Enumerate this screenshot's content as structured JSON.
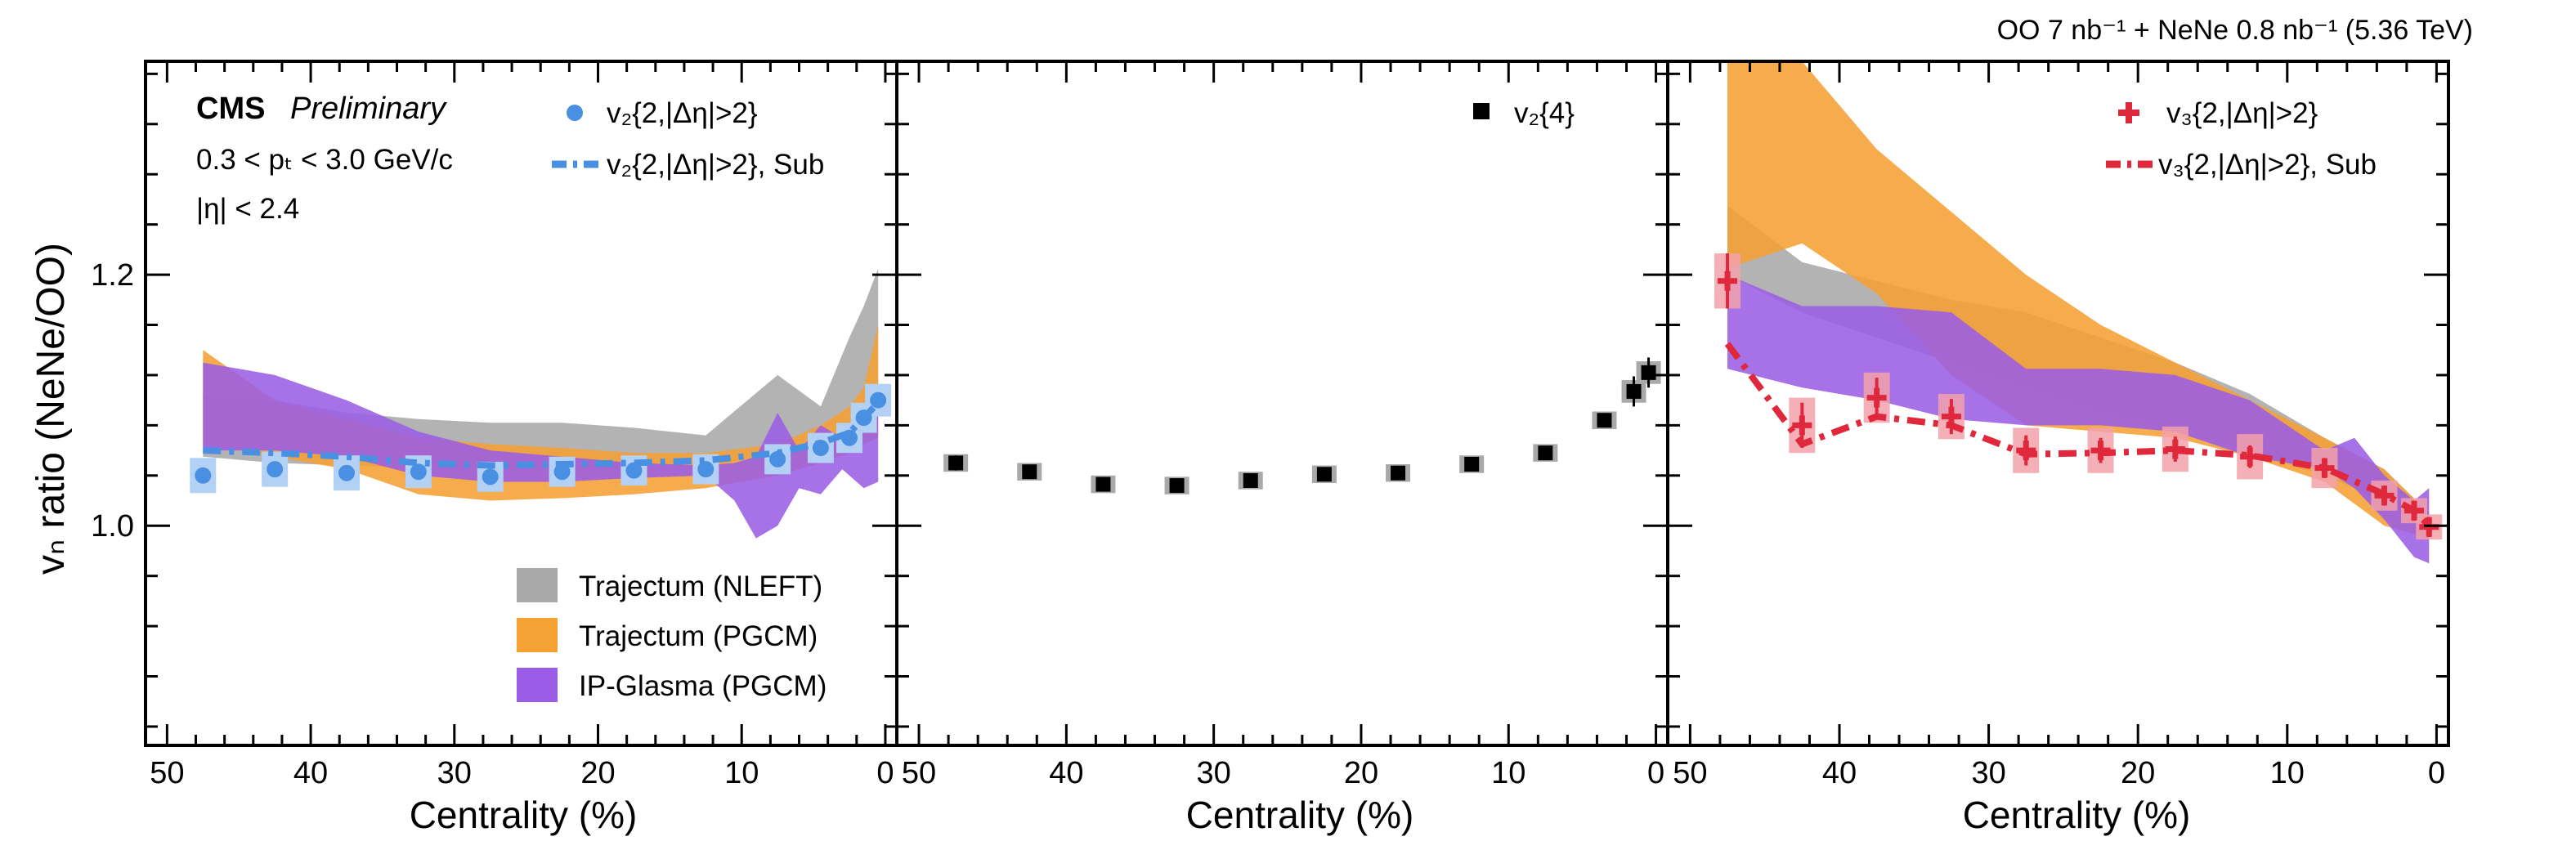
{
  "header": {
    "text": "OO 7 nb⁻¹ + NeNe 0.8 nb⁻¹ (5.36 TeV)"
  },
  "y_axis_label": "vₙ ratio (NeNe/OO)",
  "y_ticks": [
    "1.0",
    "1.2"
  ],
  "x_axis_label": "Centrality (%)",
  "x_ticks": [
    "50",
    "40",
    "30",
    "20",
    "10",
    "0"
  ],
  "annotations": {
    "experiment": "CMS",
    "status": "Preliminary",
    "pt_cut": "0.3 < pₜ < 3.0 GeV/c",
    "eta_cut": "|η| < 2.4"
  },
  "models": [
    {
      "name": "Trajectum (NLEFT)",
      "color": "#a9a9a9"
    },
    {
      "name": "Trajectum (PGCM)",
      "color": "#f5a133"
    },
    {
      "name": "IP-Glasma (PGCM)",
      "color": "#9b5de5"
    }
  ],
  "colors": {
    "v2": "#4a90e2",
    "v2_sys": "#b3d1f5",
    "v3": "#e0283c",
    "v3_sys": "#f2a1aa",
    "v24": "#000000",
    "v24_sys": "#a9a9a9"
  },
  "chart_data": [
    {
      "type": "scatter",
      "panel": "left",
      "xlabel": "Centrality (%)",
      "ylabel": "vₙ ratio (NeNe/OO)",
      "xlim": [
        51.5,
        -0.8
      ],
      "ylim": [
        0.825,
        1.37
      ],
      "legend": [
        "v₂{2,|Δη|>2}",
        "v₂{2,|Δη|>2}, Sub"
      ],
      "series": [
        {
          "name": "v₂{2,|Δη|>2}",
          "x": [
            47.5,
            42.5,
            37.5,
            32.5,
            27.5,
            22.5,
            17.5,
            12.5,
            7.5,
            4.5,
            2.5,
            1.5,
            0.5
          ],
          "y": [
            1.04,
            1.045,
            1.042,
            1.043,
            1.039,
            1.043,
            1.044,
            1.045,
            1.053,
            1.062,
            1.07,
            1.086,
            1.1
          ],
          "sys": [
            0.014,
            0.014,
            0.014,
            0.013,
            0.012,
            0.012,
            0.012,
            0.012,
            0.012,
            0.012,
            0.012,
            0.012,
            0.013
          ]
        },
        {
          "name": "v₂{2,|Δη|>2}, Sub",
          "x": [
            47.5,
            42.5,
            37.5,
            32.5,
            27.5,
            22.5,
            17.5,
            12.5,
            7.5,
            4.5,
            2.5,
            1.5,
            0.5
          ],
          "y": [
            1.06,
            1.058,
            1.055,
            1.05,
            1.048,
            1.049,
            1.05,
            1.052,
            1.058,
            1.066,
            1.074,
            1.086,
            1.098
          ]
        }
      ],
      "bands": [
        {
          "name": "Trajectum (NLEFT)",
          "x": [
            47.5,
            42.5,
            37.5,
            32.5,
            27.5,
            22.5,
            17.5,
            12.5,
            7.5,
            4.5,
            2.5,
            1.5,
            0.5
          ],
          "upper": [
            1.105,
            1.1,
            1.09,
            1.085,
            1.082,
            1.082,
            1.078,
            1.072,
            1.12,
            1.095,
            1.15,
            1.175,
            1.205
          ],
          "lower": [
            1.055,
            1.05,
            1.048,
            1.046,
            1.045,
            1.045,
            1.045,
            1.045,
            1.06,
            1.055,
            1.07,
            1.085,
            1.09
          ]
        },
        {
          "name": "Trajectum (PGCM)",
          "x": [
            47.5,
            42.5,
            37.5,
            32.5,
            27.5,
            22.5,
            17.5,
            12.5,
            7.5,
            4.5,
            2.5,
            1.5,
            0.5
          ],
          "upper": [
            1.14,
            1.1,
            1.085,
            1.07,
            1.065,
            1.062,
            1.058,
            1.058,
            1.065,
            1.08,
            1.095,
            1.11,
            1.16
          ],
          "lower": [
            1.065,
            1.055,
            1.045,
            1.025,
            1.02,
            1.022,
            1.025,
            1.03,
            1.04,
            1.05,
            1.058,
            1.065,
            1.07
          ]
        },
        {
          "name": "IP-Glasma (PGCM)",
          "x": [
            47.5,
            42.5,
            37.5,
            32.5,
            27.5,
            22.5,
            17.5,
            12.5,
            10.5,
            9.0,
            7.5,
            6.0,
            4.5,
            3.0,
            1.5,
            0.5
          ],
          "upper": [
            1.13,
            1.12,
            1.1,
            1.075,
            1.06,
            1.055,
            1.05,
            1.048,
            1.05,
            1.055,
            1.09,
            1.06,
            1.08,
            1.07,
            1.085,
            1.09
          ],
          "lower": [
            1.06,
            1.06,
            1.055,
            1.04,
            1.035,
            1.035,
            1.038,
            1.04,
            1.02,
            0.99,
            1.0,
            1.03,
            1.025,
            1.045,
            1.03,
            1.035
          ]
        }
      ]
    },
    {
      "type": "scatter",
      "panel": "middle",
      "xlabel": "Centrality (%)",
      "xlim": [
        51.5,
        -0.8
      ],
      "ylim": [
        0.825,
        1.37
      ],
      "legend": [
        "v₂{4}"
      ],
      "series": [
        {
          "name": "v₂{4}",
          "x": [
            47.5,
            42.5,
            37.5,
            32.5,
            27.5,
            22.5,
            17.5,
            12.5,
            7.5,
            3.5,
            1.5,
            0.5
          ],
          "y": [
            1.05,
            1.043,
            1.033,
            1.032,
            1.036,
            1.041,
            1.042,
            1.049,
            1.058,
            1.084,
            1.107,
            1.122
          ],
          "stat": [
            0.006,
            0.004,
            0.003,
            0.003,
            0.003,
            0.003,
            0.003,
            0.004,
            0.004,
            0.005,
            0.012,
            0.012
          ],
          "sys": [
            0.007,
            0.007,
            0.007,
            0.007,
            0.007,
            0.007,
            0.007,
            0.007,
            0.007,
            0.007,
            0.009,
            0.009
          ]
        }
      ]
    },
    {
      "type": "scatter",
      "panel": "right",
      "xlabel": "Centrality (%)",
      "xlim": [
        51.5,
        -0.8
      ],
      "ylim": [
        0.825,
        1.37
      ],
      "legend": [
        "v₃{2,|Δη|>2}",
        "v₃{2,|Δη|>2}, Sub"
      ],
      "series": [
        {
          "name": "v₃{2,|Δη|>2}",
          "x": [
            47.5,
            42.5,
            37.5,
            32.5,
            27.5,
            22.5,
            17.5,
            12.5,
            7.5,
            3.5,
            1.5,
            0.5
          ],
          "y": [
            1.195,
            1.08,
            1.102,
            1.087,
            1.06,
            1.06,
            1.061,
            1.055,
            1.046,
            1.024,
            1.012,
            0.999
          ],
          "stat": [
            0.022,
            0.018,
            0.016,
            0.014,
            0.012,
            0.01,
            0.01,
            0.009,
            0.008,
            0.008,
            0.008,
            0.008
          ],
          "sys": [
            0.022,
            0.022,
            0.02,
            0.018,
            0.018,
            0.018,
            0.018,
            0.018,
            0.016,
            0.012,
            0.01,
            0.01
          ]
        },
        {
          "name": "v₃{2,|Δη|>2}, Sub",
          "x": [
            47.5,
            42.5,
            37.5,
            32.5,
            27.5,
            22.5,
            17.5,
            12.5,
            7.5,
            3.5,
            1.5,
            0.5
          ],
          "y": [
            1.145,
            1.065,
            1.087,
            1.08,
            1.057,
            1.058,
            1.06,
            1.056,
            1.046,
            1.025,
            1.012,
            1.0
          ]
        }
      ],
      "bands": [
        {
          "name": "Trajectum (NLEFT)",
          "x": [
            47.5,
            42.5,
            37.5,
            32.5,
            27.5,
            22.5,
            17.5,
            12.5,
            7.5,
            3.5,
            0.5
          ],
          "upper": [
            1.255,
            1.21,
            1.195,
            1.18,
            1.17,
            1.15,
            1.13,
            1.105,
            1.07,
            1.045,
            1.01
          ],
          "lower": [
            1.2,
            1.17,
            1.15,
            1.13,
            1.11,
            1.09,
            1.075,
            1.06,
            1.04,
            1.02,
            0.995
          ]
        },
        {
          "name": "Trajectum (PGCM)",
          "x": [
            47.5,
            42.5,
            37.5,
            32.5,
            27.5,
            22.5,
            17.5,
            12.5,
            7.5,
            3.5,
            0.5
          ],
          "upper": [
            1.37,
            1.37,
            1.3,
            1.25,
            1.2,
            1.16,
            1.13,
            1.1,
            1.07,
            1.045,
            1.01
          ],
          "lower": [
            1.205,
            1.225,
            1.185,
            1.12,
            1.08,
            1.075,
            1.07,
            1.055,
            1.035,
            1.0,
            0.99
          ]
        },
        {
          "name": "IP-Glasma (PGCM)",
          "x": [
            47.5,
            42.5,
            37.5,
            32.5,
            27.5,
            22.5,
            17.5,
            12.5,
            7.5,
            5.5,
            3.5,
            1.5,
            0.5
          ],
          "upper": [
            1.2,
            1.175,
            1.175,
            1.17,
            1.125,
            1.125,
            1.12,
            1.1,
            1.06,
            1.07,
            1.04,
            1.02,
            1.03
          ],
          "lower": [
            1.125,
            1.11,
            1.1,
            1.085,
            1.08,
            1.08,
            1.075,
            1.055,
            1.045,
            1.03,
            1.005,
            0.975,
            0.97
          ]
        }
      ]
    }
  ]
}
